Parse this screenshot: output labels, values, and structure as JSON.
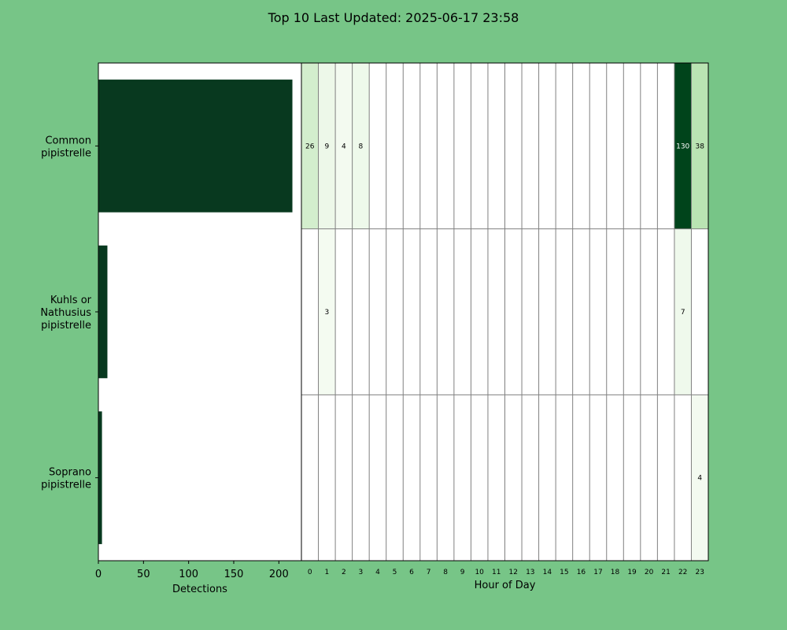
{
  "title": "Top 10 Last Updated: 2025-06-17 23:58",
  "chart_data": [
    {
      "type": "bar",
      "orientation": "horizontal",
      "categories": [
        [
          "Common",
          "pipistrelle"
        ],
        [
          "Kuhls or",
          "Nathusius",
          "pipistrelle"
        ],
        [
          "Soprano",
          "pipistrelle"
        ]
      ],
      "values": [
        215,
        10,
        4
      ],
      "xlabel": "Detections",
      "xlim": [
        0,
        225
      ],
      "xticks": [
        0,
        50,
        100,
        150,
        200
      ],
      "bar_color": "#08391f"
    },
    {
      "type": "heatmap",
      "xlabel": "Hour of Day",
      "hours": [
        "0",
        "1",
        "2",
        "3",
        "4",
        "5",
        "6",
        "7",
        "8",
        "9",
        "10",
        "11",
        "12",
        "13",
        "14",
        "15",
        "16",
        "17",
        "18",
        "19",
        "20",
        "21",
        "22",
        "23"
      ],
      "highlight_hour": "23",
      "highlight_color": "#ffff00",
      "rows": [
        {
          "species": "Common pipistrelle",
          "counts": [
            26,
            9,
            4,
            8,
            0,
            0,
            0,
            0,
            0,
            0,
            0,
            0,
            0,
            0,
            0,
            0,
            0,
            0,
            0,
            0,
            0,
            0,
            130,
            38
          ]
        },
        {
          "species": "Kuhls or Nathusius pipistrelle",
          "counts": [
            0,
            3,
            0,
            0,
            0,
            0,
            0,
            0,
            0,
            0,
            0,
            0,
            0,
            0,
            0,
            0,
            0,
            0,
            0,
            0,
            0,
            0,
            7,
            0
          ]
        },
        {
          "species": "Soprano pipistrelle",
          "counts": [
            0,
            0,
            0,
            0,
            0,
            0,
            0,
            0,
            0,
            0,
            0,
            0,
            0,
            0,
            0,
            0,
            0,
            0,
            0,
            0,
            0,
            0,
            0,
            4
          ]
        }
      ],
      "colormap": "Greens",
      "grid": true
    }
  ],
  "colors": {
    "background": "#77c587",
    "panel": "#ffffff",
    "grid": "#808080"
  }
}
